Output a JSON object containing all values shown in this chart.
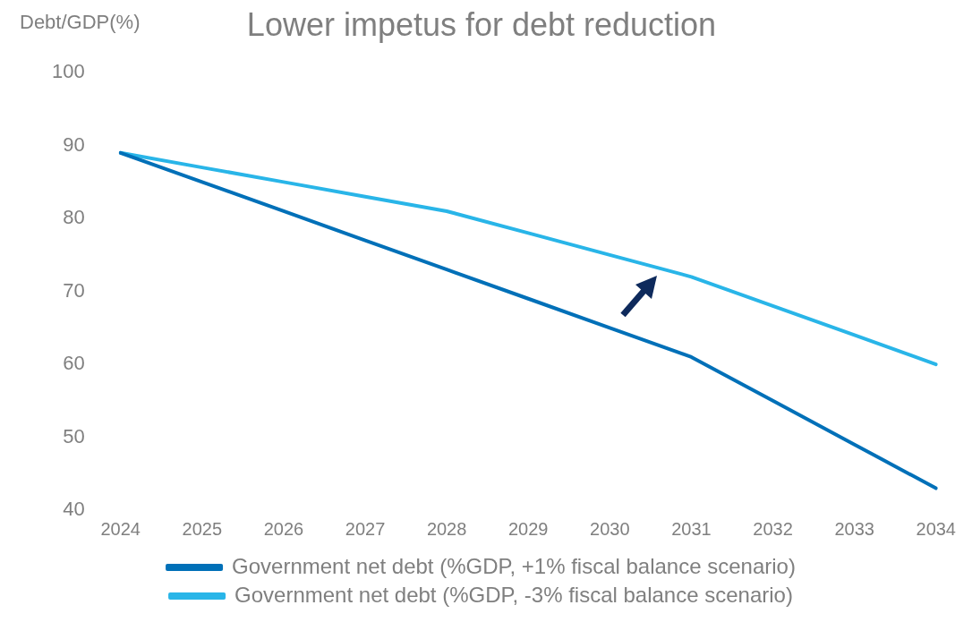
{
  "chart_data": {
    "type": "line",
    "title": "Lower impetus for debt reduction",
    "ylabel": "Debt/GDP(%)",
    "categories": [
      "2024",
      "2025",
      "2026",
      "2027",
      "2028",
      "2029",
      "2030",
      "2031",
      "2032",
      "2033",
      "2034"
    ],
    "series": [
      {
        "name": "Government net debt (%GDP, +1% fiscal balance scenario)",
        "color": "#0070b8",
        "values": [
          89,
          85,
          81,
          77,
          73,
          69,
          65,
          61,
          55,
          49,
          43
        ]
      },
      {
        "name": "Government net debt (%GDP, -3% fiscal balance scenario)",
        "color": "#29b5e8",
        "values": [
          89,
          87,
          85,
          83,
          81,
          78,
          75,
          72,
          68,
          64,
          60
        ]
      }
    ],
    "ylim": [
      40,
      100
    ],
    "yticks": [
      40,
      50,
      60,
      70,
      80,
      90,
      100
    ],
    "grid": false,
    "legend": "bottom",
    "marker": "none",
    "line_style": "solid"
  }
}
